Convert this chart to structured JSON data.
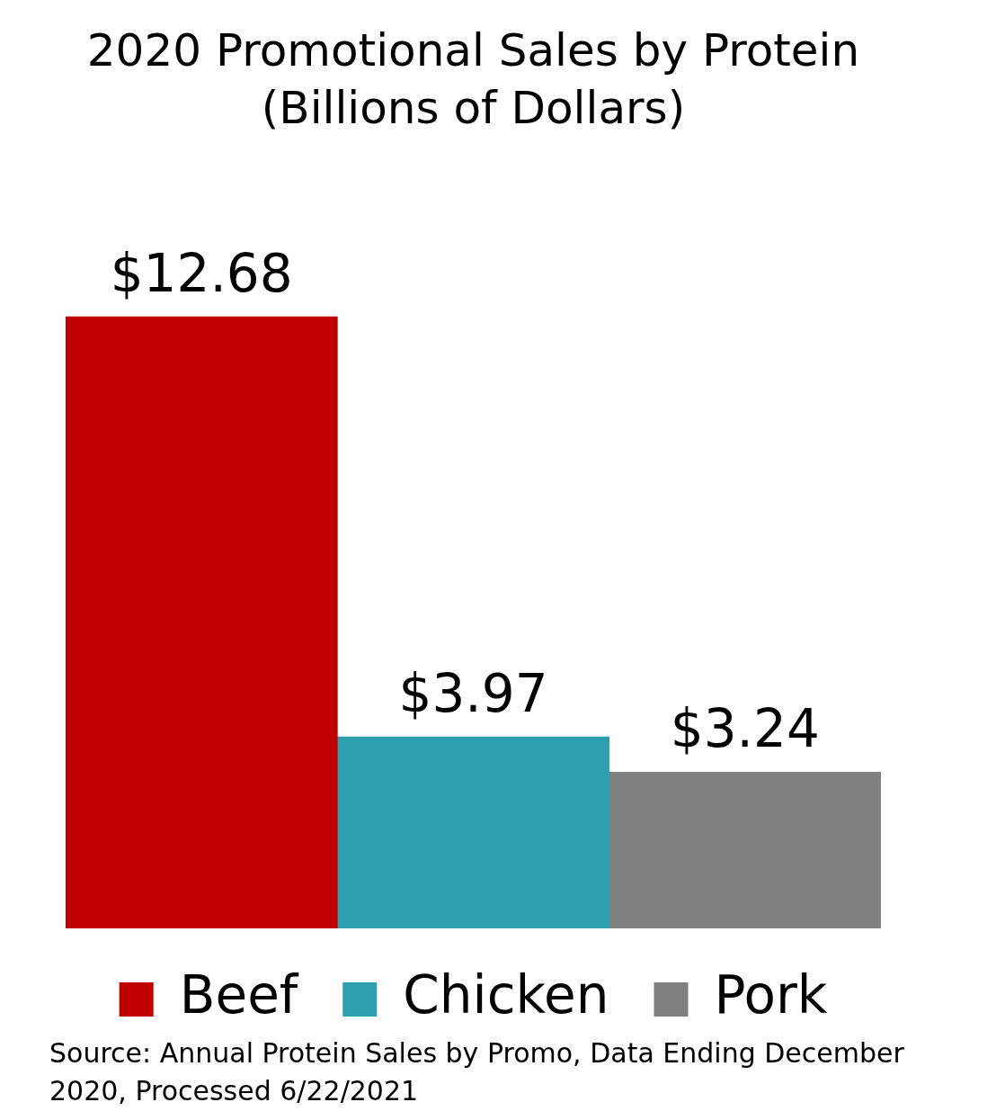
{
  "chart_data": {
    "type": "bar",
    "title": "2020 Promotional Sales by Protein",
    "subtitle": "(Billions of Dollars)",
    "categories": [
      null
    ],
    "series": [
      {
        "name": "Beef",
        "color": "#c00000",
        "values": [
          12.68
        ],
        "value_labels": [
          "$12.68"
        ]
      },
      {
        "name": "Chicken",
        "color": "#2e9fac",
        "values": [
          3.97
        ],
        "value_labels": [
          "$3.97"
        ]
      },
      {
        "name": "Pork",
        "color": "#808080",
        "values": [
          3.24
        ],
        "value_labels": [
          "$3.24"
        ]
      }
    ],
    "legend": "bottom",
    "annotations": [
      "Source: Annual Protein Sales by Promo, Data Ending December 2020, Processed 6/22/2021"
    ]
  }
}
